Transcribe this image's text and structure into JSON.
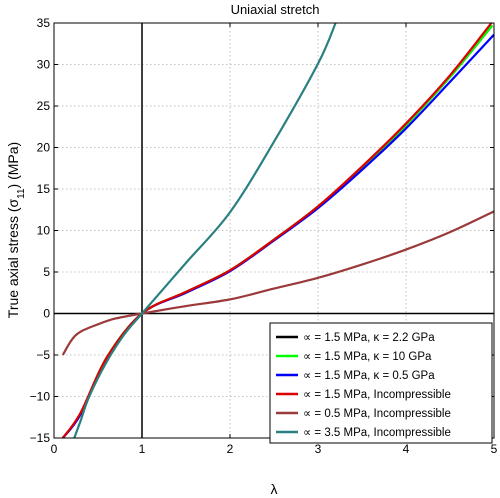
{
  "chart_data": {
    "type": "line",
    "title": "Uniaxial stretch",
    "xlabel": "λ",
    "ylabel": "True axial stress (σ11) (MPa)",
    "ylabel_parts": {
      "prefix": "True axial stress (σ",
      "sub": "11",
      "suffix": ") (MPa)"
    },
    "xlim": [
      0,
      5
    ],
    "ylim": [
      -15,
      35
    ],
    "xticks": [
      "0",
      "1",
      "2",
      "3",
      "4",
      "5"
    ],
    "yticks": [
      "−15",
      "−10",
      "−5",
      "0",
      "5",
      "10",
      "15",
      "20",
      "25",
      "30",
      "35"
    ],
    "grid": true,
    "legend_position": "bottom-right",
    "reference_lines": {
      "x": 1,
      "y": 0
    },
    "series": [
      {
        "name": "∝ = 1.5 MPa, κ = 2.2 GPa",
        "color": "#000000",
        "x": [
          0.1,
          0.3,
          0.6,
          1.0,
          1.5,
          2.0,
          2.5,
          3.0,
          3.5,
          4.0,
          4.5,
          4.98
        ],
        "y": [
          -15.0,
          -12.1,
          -5.3,
          0.0,
          2.6,
          5.2,
          8.9,
          12.9,
          17.6,
          22.7,
          28.5,
          34.7
        ]
      },
      {
        "name": "∝ = 1.5 MPa, κ = 10 GPa",
        "color": "#00ff00",
        "x": [
          0.1,
          0.3,
          0.6,
          1.0,
          1.5,
          2.0,
          2.5,
          3.0,
          3.5,
          4.0,
          4.5,
          4.98
        ],
        "y": [
          -15.0,
          -12.1,
          -5.3,
          0.0,
          2.6,
          5.2,
          8.9,
          12.9,
          17.6,
          22.7,
          28.5,
          34.7
        ]
      },
      {
        "name": "∝ = 1.5 MPa, κ = 0.5 GPa",
        "color": "#0000ff",
        "x": [
          0.1,
          0.3,
          0.6,
          1.0,
          1.5,
          2.0,
          2.5,
          3.0,
          3.5,
          4.0,
          4.5,
          5.0
        ],
        "y": [
          -15.0,
          -12.2,
          -5.4,
          0.0,
          2.5,
          5.1,
          8.8,
          12.7,
          17.3,
          22.3,
          27.9,
          33.6
        ]
      },
      {
        "name": "∝ = 1.5 MPa, Incompressible",
        "color": "#dd0000",
        "x": [
          0.1,
          0.3,
          0.6,
          1.0,
          1.5,
          2.0,
          2.5,
          3.0,
          3.5,
          4.0,
          4.5,
          4.97
        ],
        "y": [
          -15.0,
          -12.0,
          -5.3,
          0.0,
          2.6,
          5.2,
          8.9,
          12.9,
          17.7,
          22.9,
          28.7,
          35.0
        ]
      },
      {
        "name": "∝ = 0.5 MPa, Incompressible",
        "color": "#9b3a3a",
        "x": [
          0.1,
          0.2,
          0.3,
          0.5,
          0.7,
          1.0,
          1.5,
          2.0,
          2.5,
          3.0,
          3.5,
          4.0,
          4.5,
          5.0
        ],
        "y": [
          -5.0,
          -3.2,
          -2.2,
          -1.3,
          -0.6,
          0.0,
          0.9,
          1.7,
          3.0,
          4.3,
          5.9,
          7.7,
          9.8,
          12.3
        ]
      },
      {
        "name": "∝ = 3.5 MPa, Incompressible",
        "color": "#2a8080",
        "x": [
          0.23,
          0.3,
          0.4,
          0.6,
          0.8,
          1.0,
          1.5,
          2.0,
          2.5,
          3.0,
          3.2
        ],
        "y": [
          -15.0,
          -13.0,
          -10.0,
          -5.8,
          -2.5,
          0.0,
          6.1,
          12.2,
          20.7,
          30.1,
          35.0
        ]
      }
    ]
  }
}
